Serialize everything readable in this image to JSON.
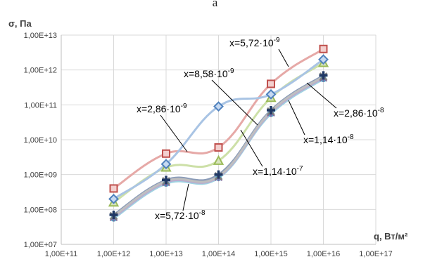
{
  "panel_letter": "a",
  "chart_data": {
    "type": "line",
    "ylabel": "σ, Па",
    "xlabel": "q, Вт/м²",
    "x_scale": "log",
    "y_scale": "log",
    "xlim": [
      100000000000.0,
      1e+17
    ],
    "ylim": [
      10000000.0,
      10000000000000.0
    ],
    "x_ticks": [
      "1,00E+11",
      "1,00E+12",
      "1,00E+13",
      "1,00E+14",
      "1,00E+15",
      "1,00E+16",
      "1,00E+17"
    ],
    "y_ticks": [
      "1,00E+07",
      "1,00E+08",
      "1,00E+09",
      "1,00E+10",
      "1,00E+11",
      "1,00E+12",
      "1,00E+13"
    ],
    "grid": true,
    "x": [
      1000000000000.0,
      10000000000000.0,
      100000000000000.0,
      1000000000000000.0,
      1e+16
    ],
    "series": [
      {
        "label": "x=2,86·10⁻⁹",
        "color": "#4f81bd",
        "line_color": "#a9c4e4",
        "marker": "diamond",
        "values": [
          200000000.0,
          2000000000.0,
          90000000000.0,
          200000000000.0,
          2000000000000.0
        ]
      },
      {
        "label": "x=5,72·10⁻⁹",
        "color": "#c0504d",
        "line_color": "#e6a9a7",
        "marker": "square",
        "values": [
          400000000.0,
          4000000000.0,
          6000000000.0,
          400000000000.0,
          4000000000000.0
        ]
      },
      {
        "label": "x=8,58·10⁻⁹",
        "color": "#9bbb59",
        "line_color": "#cde0a8",
        "marker": "triangle",
        "values": [
          160000000.0,
          1600000000.0,
          2500000000.0,
          160000000000.0,
          1600000000000.0
        ]
      },
      {
        "label": "x=1,14·10⁻⁸",
        "color": "#7f7f7f",
        "line_color": "#bfbfbf",
        "marker": "x",
        "values": [
          65000000.0,
          650000000.0,
          900000000.0,
          65000000000.0,
          650000000000.0
        ]
      },
      {
        "label": "x=2,86·10⁻⁸",
        "color": "#8064a2",
        "line_color": "#b9a9cf",
        "marker": "star",
        "values": [
          60000000.0,
          600000000.0,
          850000000.0,
          60000000000.0,
          600000000000.0
        ]
      },
      {
        "label": "x=5,72·10⁻⁸",
        "color": "#4bacc6",
        "line_color": "#9fd3e2",
        "marker": "circle",
        "values": [
          55000000.0,
          550000000.0,
          800000000.0,
          55000000000.0,
          550000000000.0
        ]
      },
      {
        "label": "x=1,14·10⁻⁷",
        "color": "#1f3864",
        "line_color": "#8a9bb8",
        "marker": "plus",
        "values": [
          70000000.0,
          700000000.0,
          1000000000.0,
          70000000000.0,
          700000000000.0
        ]
      }
    ],
    "annotations": [
      {
        "text": "x=5,72·10",
        "exp": "-9",
        "series": 1
      },
      {
        "text": "x=8,58·10",
        "exp": "-9",
        "series": 2
      },
      {
        "text": "x=2,86·10",
        "exp": "-9",
        "series": 0
      },
      {
        "text": "x=2,86·10",
        "exp": "-8",
        "series": 4
      },
      {
        "text": "x=1,14·10",
        "exp": "-8",
        "series": 3
      },
      {
        "text": "x=1,14·10",
        "exp": "-7",
        "series": 6
      },
      {
        "text": "x=5,72·10",
        "exp": "-8",
        "series": 5
      }
    ]
  }
}
